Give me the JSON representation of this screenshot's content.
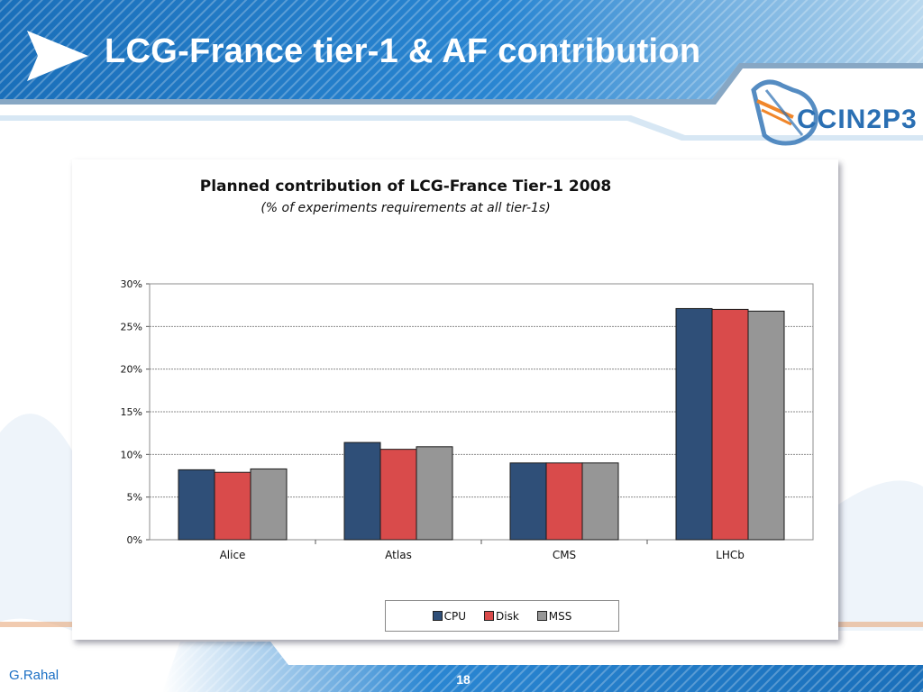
{
  "slide": {
    "title": "LCG-France tier-1 & AF contribution",
    "logo_text": "CCIN2P3",
    "author": "G.Rahal",
    "page_number": "18"
  },
  "colors": {
    "header_blue": "#1f78c4",
    "header_dark": "#145a9c",
    "cpu": "#2f4f78",
    "disk": "#d94b4b",
    "mss": "#969696",
    "logo_blue": "#2a6fb3",
    "logo_orange": "#f0862a"
  },
  "legend": [
    {
      "key": "cpu",
      "label": "CPU"
    },
    {
      "key": "disk",
      "label": "Disk"
    },
    {
      "key": "mss",
      "label": "MSS"
    }
  ],
  "chart_data": {
    "type": "bar",
    "title": "Planned contribution of LCG-France Tier-1 2008",
    "subtitle": "(% of experiments requirements at all tier-1s)",
    "categories": [
      "Alice",
      "Atlas",
      "CMS",
      "LHCb"
    ],
    "series": [
      {
        "name": "CPU",
        "values": [
          8.2,
          11.4,
          9.0,
          27.1
        ]
      },
      {
        "name": "Disk",
        "values": [
          7.9,
          10.6,
          9.0,
          27.0
        ]
      },
      {
        "name": "MSS",
        "values": [
          8.3,
          10.9,
          9.0,
          26.8
        ]
      }
    ],
    "ylim": [
      0,
      30
    ],
    "yticks": [
      0,
      5,
      10,
      15,
      20,
      25,
      30
    ],
    "ytick_labels": [
      "0%",
      "5%",
      "10%",
      "15%",
      "20%",
      "25%",
      "30%"
    ],
    "grid": true,
    "legend_position": "bottom"
  }
}
